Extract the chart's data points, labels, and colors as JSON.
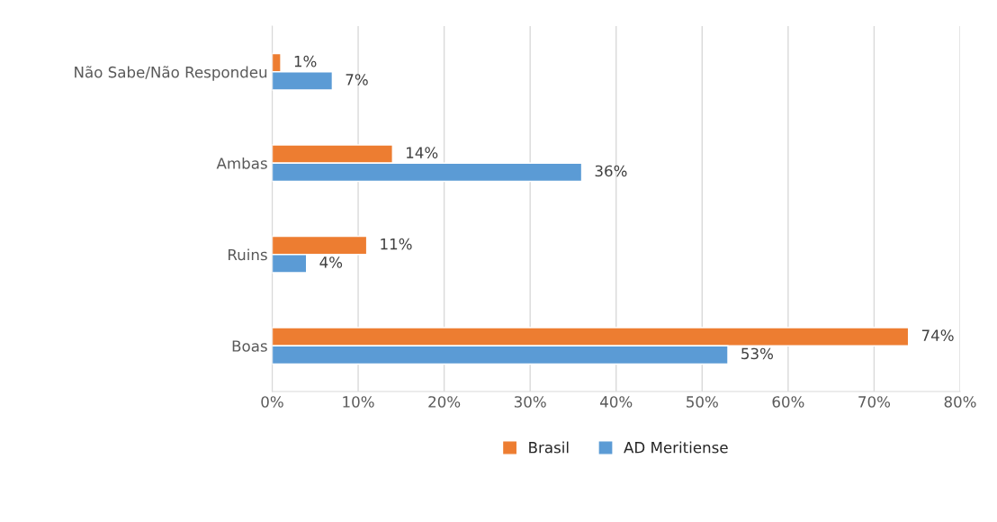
{
  "chart_data": {
    "type": "bar",
    "orientation": "horizontal",
    "categories": [
      "Não Sabe/Não Respondeu",
      "Ambas",
      "Ruins",
      "Boas"
    ],
    "series": [
      {
        "name": "Brasil",
        "color": "#ed7d31",
        "values": [
          1,
          14,
          11,
          74
        ],
        "value_labels": [
          "1%",
          "14%",
          "11%",
          "74%"
        ]
      },
      {
        "name": "AD Meritiense",
        "color": "#5b9bd5",
        "values": [
          7,
          36,
          4,
          53
        ],
        "value_labels": [
          "7%",
          "36%",
          "4%",
          "53%"
        ]
      }
    ],
    "xlim": [
      0,
      80
    ],
    "xticks": [
      {
        "value": 0,
        "label": "0%"
      },
      {
        "value": 10,
        "label": "10%"
      },
      {
        "value": 20,
        "label": "20%"
      },
      {
        "value": 30,
        "label": "30%"
      },
      {
        "value": 40,
        "label": "40%"
      },
      {
        "value": 50,
        "label": "50%"
      },
      {
        "value": 60,
        "label": "60%"
      },
      {
        "value": 70,
        "label": "70%"
      },
      {
        "value": 80,
        "label": "80%"
      }
    ],
    "grid": "x",
    "legend": "bottom"
  }
}
